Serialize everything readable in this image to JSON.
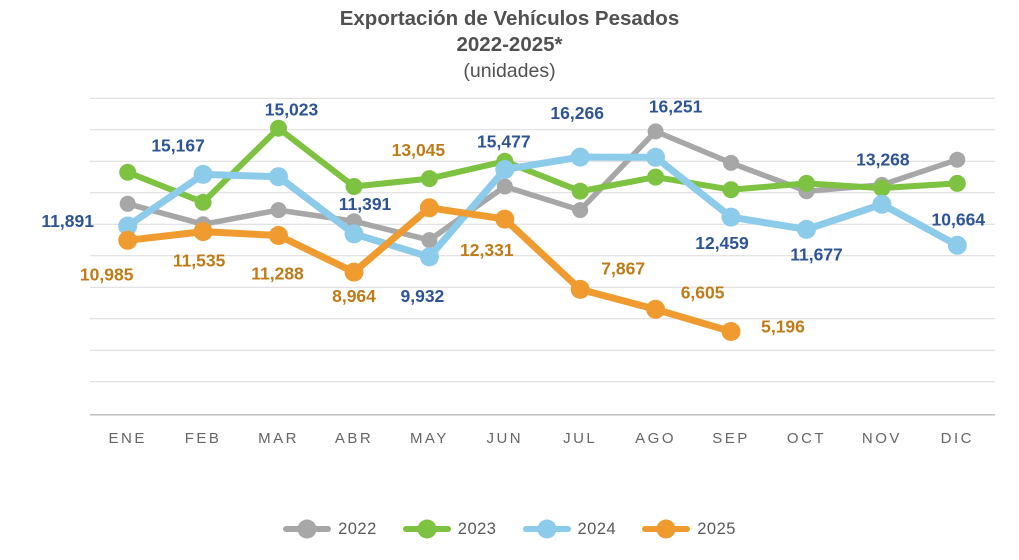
{
  "title": {
    "line1": "Exportación de Vehículos Pesados",
    "line2": "2022-2025*",
    "line3": "(unidades)"
  },
  "chart_data": {
    "type": "line",
    "categories": [
      "ENE",
      "FEB",
      "MAR",
      "ABR",
      "MAY",
      "JUN",
      "JUL",
      "AGO",
      "SEP",
      "OCT",
      "NOV",
      "DIC"
    ],
    "ylim": [
      0,
      20000
    ],
    "gridline_step": 2000,
    "grid": true,
    "legend_position": "bottom",
    "series": [
      {
        "name": "2022",
        "color": "#A7A7A7",
        "line_width": 5.5,
        "marker_radius": 8,
        "show_labels": false,
        "values_estimated": true,
        "values": [
          13300,
          12000,
          12900,
          12200,
          11000,
          14400,
          12900,
          17900,
          15900,
          14100,
          14500,
          16100
        ]
      },
      {
        "name": "2023",
        "color": "#7EC241",
        "line_width": 6,
        "marker_radius": 8.5,
        "show_labels": false,
        "values_estimated": true,
        "values": [
          15300,
          13400,
          18100,
          14400,
          14900,
          16000,
          14100,
          15000,
          14200,
          14600,
          14300,
          14600
        ]
      },
      {
        "name": "2024",
        "color": "#8DCBEA",
        "line_width": 7,
        "marker_radius": 9.5,
        "show_labels": true,
        "label_color": "#2E5496",
        "values": [
          11891,
          15167,
          15023,
          11391,
          9932,
          15477,
          16266,
          16251,
          12459,
          11677,
          13268,
          10664
        ],
        "labels": [
          "11,891",
          "15,167",
          "15,023",
          "11,391",
          "9,932",
          "15,477",
          "16,266",
          "16,251",
          "12,459",
          "11,677",
          "13,268",
          "10,664"
        ],
        "label_offsets": [
          [
            -60,
            -5
          ],
          [
            -25,
            -29
          ],
          [
            13,
            -67
          ],
          [
            11,
            -30
          ],
          [
            -7,
            39
          ],
          [
            -1,
            -28
          ],
          [
            -3,
            -44
          ],
          [
            20,
            -51
          ],
          [
            -9,
            26
          ],
          [
            10,
            25
          ],
          [
            1,
            -45
          ],
          [
            1,
            -26
          ]
        ]
      },
      {
        "name": "2025",
        "color": "#EF9B30",
        "line_width": 7,
        "marker_radius": 9.5,
        "show_labels": true,
        "label_color": "#BF7B17",
        "values": [
          10985,
          11535,
          11288,
          8964,
          13045,
          12331,
          7867,
          6605,
          5196
        ],
        "labels": [
          "10,985",
          "11,535",
          "11,288",
          "8,964",
          "13,045",
          "12,331",
          "7,867",
          "6,605",
          "5,196"
        ],
        "label_offsets": [
          [
            -21,
            34
          ],
          [
            -4,
            29
          ],
          [
            -1,
            38
          ],
          [
            0,
            24
          ],
          [
            -11,
            -58
          ],
          [
            -18,
            31
          ],
          [
            43,
            -21
          ],
          [
            47,
            -17
          ],
          [
            52,
            -5
          ]
        ]
      }
    ]
  },
  "styles": {
    "background": "#FFFFFF",
    "grid_color": "#DADADA",
    "axis_color": "#BFBFBF",
    "axis_label_color": "#666666",
    "title_color": "#515151",
    "legend_text_color": "#595959"
  }
}
